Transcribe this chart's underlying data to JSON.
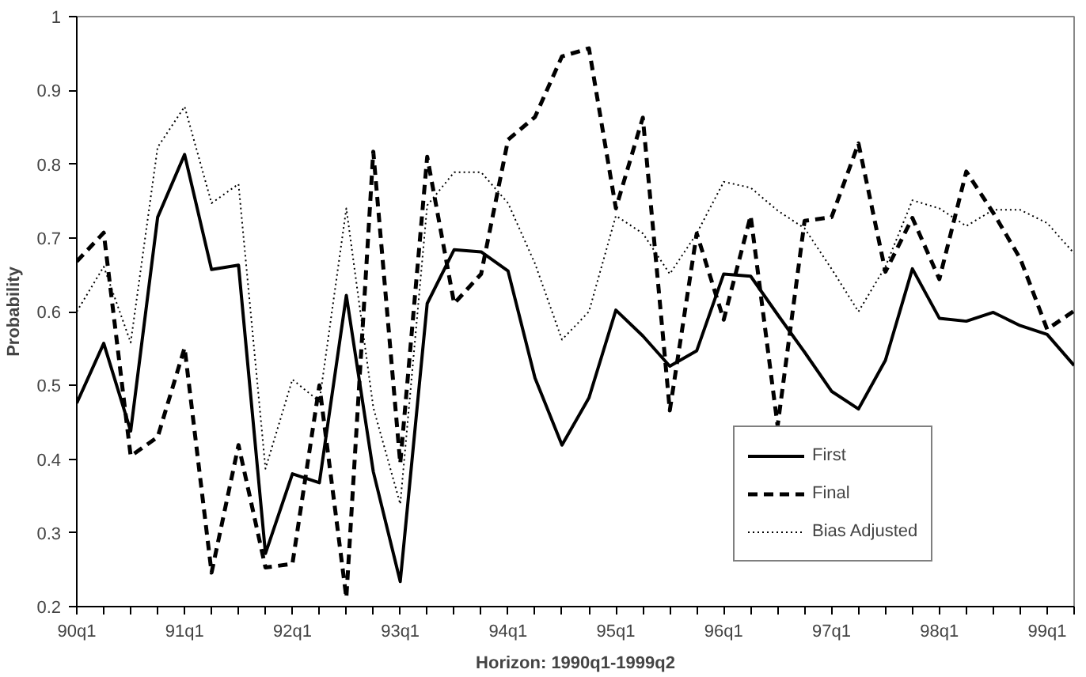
{
  "chart_data": {
    "type": "line",
    "xlabel": "Horizon: 1990q1-1999q2",
    "ylabel": "Probability",
    "categories": [
      "90q1",
      null,
      null,
      null,
      "91q1",
      null,
      null,
      null,
      "92q1",
      null,
      null,
      null,
      "93q1",
      null,
      null,
      null,
      "94q1",
      null,
      null,
      null,
      "95q1",
      null,
      null,
      null,
      "96q1",
      null,
      null,
      null,
      "97q1",
      null,
      null,
      null,
      "98q1",
      null,
      null,
      null,
      "99q1",
      null
    ],
    "ylim": [
      0.2,
      1
    ],
    "yticks": [
      0.2,
      0.3,
      0.4,
      0.5,
      0.6,
      0.7,
      0.8,
      0.9,
      1
    ],
    "grid": false,
    "legend": "bottom right",
    "marker": "none",
    "series": [
      {
        "name": "First",
        "color": "#000000",
        "line_style": "solid",
        "values": [
          0.476,
          0.557,
          0.438,
          0.728,
          0.813,
          0.657,
          0.663,
          0.272,
          0.38,
          0.368,
          0.622,
          0.383,
          0.234,
          0.611,
          0.684,
          0.681,
          0.655,
          0.51,
          0.419,
          0.483,
          0.602,
          0.567,
          0.526,
          0.547,
          0.651,
          0.648,
          0.596,
          0.545,
          0.492,
          0.468,
          0.534,
          0.658,
          0.591,
          0.587,
          0.599,
          0.581,
          0.569,
          0.527
        ]
      },
      {
        "name": "Final",
        "color": "#000000",
        "line_style": "dashed",
        "values": [
          0.668,
          0.707,
          0.404,
          0.43,
          0.551,
          0.246,
          0.419,
          0.253,
          0.258,
          0.5,
          0.212,
          0.817,
          0.394,
          0.81,
          0.611,
          0.651,
          0.833,
          0.864,
          0.946,
          0.957,
          0.74,
          0.863,
          0.466,
          0.706,
          0.589,
          0.73,
          0.445,
          0.723,
          0.728,
          0.828,
          0.654,
          0.727,
          0.644,
          0.79,
          0.734,
          0.672,
          0.576,
          0.601
        ]
      },
      {
        "name": "Bias Adjusted",
        "color": "#000000",
        "line_style": "dotted",
        "values": [
          0.6,
          0.661,
          0.558,
          0.823,
          0.878,
          0.747,
          0.773,
          0.387,
          0.508,
          0.478,
          0.74,
          0.47,
          0.339,
          0.744,
          0.789,
          0.789,
          0.747,
          0.665,
          0.562,
          0.6,
          0.73,
          0.706,
          0.651,
          0.706,
          0.776,
          0.768,
          0.737,
          0.713,
          0.658,
          0.6,
          0.661,
          0.751,
          0.74,
          0.716,
          0.738,
          0.738,
          0.72,
          0.679
        ]
      }
    ]
  }
}
